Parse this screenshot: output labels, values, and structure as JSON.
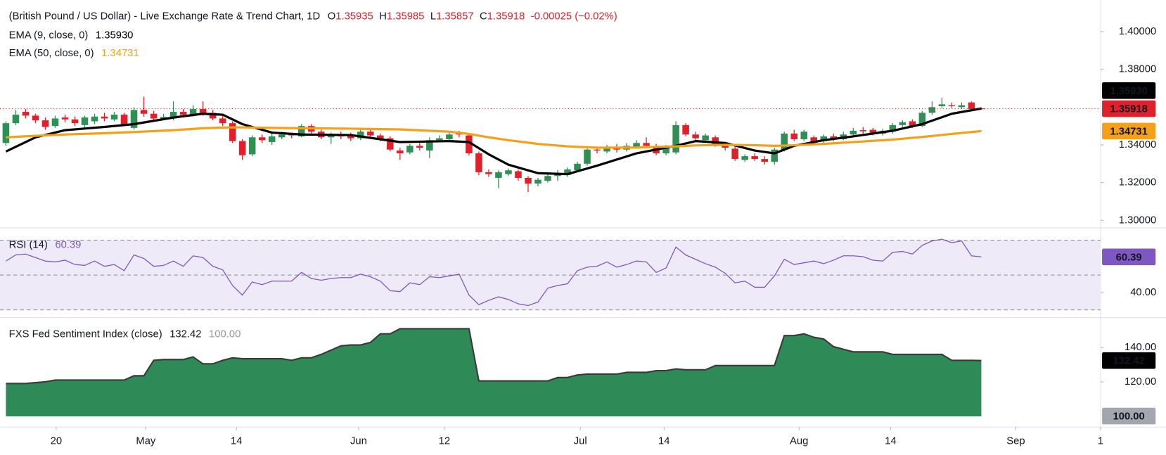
{
  "chart_data": [
    {
      "type": "candlestick",
      "title": "(British Pound / US Dollar) - Live Exchange Rate & Trend Chart, 1D",
      "stats": [
        {
          "key": "O",
          "text": "1.35935"
        },
        {
          "key": "H",
          "text": "1.35985"
        },
        {
          "key": "L",
          "text": "1.35857"
        },
        {
          "key": "C",
          "text": "1.35918"
        }
      ],
      "change": "-0.00025 (−0.02%)",
      "up_color": "#2f8f55",
      "down_color": "#e0202b",
      "open": [
        1.341,
        1.3515,
        1.3575,
        1.3555,
        1.353,
        1.35,
        1.3545,
        1.3535,
        1.3505,
        1.3525,
        1.355,
        1.3535,
        1.356,
        1.349,
        1.3585,
        1.3565,
        1.354,
        1.354,
        1.3575,
        1.356,
        1.359,
        1.357,
        1.354,
        1.3515,
        1.342,
        1.335,
        1.344,
        1.3415,
        1.344,
        1.3455,
        1.3445,
        1.35,
        1.347,
        1.344,
        1.345,
        1.345,
        1.3435,
        1.347,
        1.345,
        1.3435,
        1.337,
        1.336,
        1.3395,
        1.337,
        1.3425,
        1.343,
        1.346,
        1.345,
        1.3355,
        1.3255,
        1.3225,
        1.3245,
        1.326,
        1.3225,
        1.3195,
        1.321,
        1.3235,
        1.324,
        1.3265,
        1.33,
        1.3375,
        1.3365,
        1.339,
        1.3375,
        1.339,
        1.341,
        1.3395,
        1.3355,
        1.336,
        1.3505,
        1.3455,
        1.3425,
        1.344,
        1.34,
        1.338,
        1.332,
        1.334,
        1.3325,
        1.331,
        1.3375,
        1.346,
        1.343,
        1.344,
        1.342,
        1.3445,
        1.343,
        1.3455,
        1.3478,
        1.348,
        1.346,
        1.347,
        1.3505,
        1.3525,
        1.35,
        1.357,
        1.3605,
        1.361,
        1.36,
        1.3625,
        1.35935
      ],
      "high": [
        1.3525,
        1.3585,
        1.359,
        1.3565,
        1.3545,
        1.3555,
        1.356,
        1.355,
        1.3555,
        1.3565,
        1.357,
        1.3575,
        1.357,
        1.36,
        1.3655,
        1.358,
        1.3565,
        1.363,
        1.359,
        1.361,
        1.363,
        1.3585,
        1.3555,
        1.3525,
        1.343,
        1.345,
        1.3455,
        1.346,
        1.347,
        1.3465,
        1.351,
        1.351,
        1.348,
        1.3465,
        1.347,
        1.3465,
        1.3485,
        1.348,
        1.346,
        1.3445,
        1.3385,
        1.3405,
        1.341,
        1.344,
        1.345,
        1.347,
        1.3475,
        1.346,
        1.3365,
        1.327,
        1.3265,
        1.3275,
        1.327,
        1.3235,
        1.3225,
        1.3245,
        1.3265,
        1.328,
        1.331,
        1.3385,
        1.339,
        1.34,
        1.3405,
        1.341,
        1.3425,
        1.344,
        1.3405,
        1.34,
        1.3525,
        1.3515,
        1.347,
        1.346,
        1.345,
        1.341,
        1.339,
        1.335,
        1.3355,
        1.334,
        1.3385,
        1.347,
        1.348,
        1.348,
        1.345,
        1.3455,
        1.346,
        1.347,
        1.349,
        1.3495,
        1.349,
        1.3485,
        1.3515,
        1.353,
        1.3535,
        1.358,
        1.363,
        1.365,
        1.3625,
        1.3625,
        1.363,
        1.35985
      ],
      "low": [
        1.3395,
        1.3505,
        1.354,
        1.3515,
        1.348,
        1.349,
        1.352,
        1.35,
        1.349,
        1.351,
        1.3525,
        1.3525,
        1.35,
        1.348,
        1.355,
        1.3525,
        1.353,
        1.353,
        1.3545,
        1.355,
        1.3555,
        1.353,
        1.35,
        1.341,
        1.332,
        1.334,
        1.341,
        1.34,
        1.343,
        1.3435,
        1.344,
        1.346,
        1.343,
        1.3405,
        1.343,
        1.342,
        1.3425,
        1.344,
        1.342,
        1.3365,
        1.332,
        1.335,
        1.337,
        1.333,
        1.3415,
        1.342,
        1.344,
        1.3345,
        1.324,
        1.323,
        1.317,
        1.3235,
        1.321,
        1.315,
        1.318,
        1.32,
        1.321,
        1.323,
        1.3255,
        1.329,
        1.3355,
        1.3355,
        1.336,
        1.3365,
        1.338,
        1.3385,
        1.3345,
        1.3345,
        1.335,
        1.3445,
        1.3425,
        1.3415,
        1.339,
        1.337,
        1.3315,
        1.331,
        1.3315,
        1.3295,
        1.3295,
        1.3365,
        1.342,
        1.342,
        1.3405,
        1.341,
        1.342,
        1.3425,
        1.3445,
        1.346,
        1.345,
        1.345,
        1.346,
        1.3495,
        1.349,
        1.3495,
        1.356,
        1.3595,
        1.3595,
        1.359,
        1.358,
        1.35857
      ],
      "close": [
        1.3515,
        1.356,
        1.3555,
        1.353,
        1.3495,
        1.354,
        1.3535,
        1.3515,
        1.3545,
        1.355,
        1.354,
        1.356,
        1.351,
        1.3585,
        1.3565,
        1.354,
        1.3548,
        1.3575,
        1.356,
        1.359,
        1.357,
        1.354,
        1.3515,
        1.342,
        1.3345,
        1.344,
        1.3425,
        1.3445,
        1.3455,
        1.345,
        1.35,
        1.347,
        1.344,
        1.345,
        1.3445,
        1.3435,
        1.347,
        1.345,
        1.343,
        1.3375,
        1.3355,
        1.3395,
        1.3385,
        1.3425,
        1.3435,
        1.3455,
        1.3455,
        1.3355,
        1.3255,
        1.3245,
        1.3255,
        1.3265,
        1.3225,
        1.3195,
        1.3215,
        1.3235,
        1.325,
        1.327,
        1.33,
        1.3375,
        1.337,
        1.339,
        1.3375,
        1.3395,
        1.341,
        1.3395,
        1.3355,
        1.3385,
        1.3505,
        1.3455,
        1.3435,
        1.345,
        1.34,
        1.3385,
        1.3325,
        1.334,
        1.3325,
        1.331,
        1.3375,
        1.346,
        1.343,
        1.347,
        1.3415,
        1.3445,
        1.343,
        1.3455,
        1.3475,
        1.3472,
        1.346,
        1.3475,
        1.3505,
        1.352,
        1.35,
        1.357,
        1.36,
        1.3615,
        1.3605,
        1.361,
        1.359,
        1.35918
      ],
      "overlays": [
        {
          "name": "EMA (9, close, 0)",
          "label": "1.35930",
          "color": "#000000",
          "x": [
            0,
            3,
            6,
            10,
            13,
            17,
            20,
            22,
            24,
            27,
            30,
            35,
            40,
            45,
            47,
            49,
            51,
            54,
            57,
            60,
            64,
            68,
            70,
            73,
            76,
            78,
            80,
            83,
            86,
            90,
            93,
            96,
            99
          ],
          "values": [
            1.3365,
            1.344,
            1.3478,
            1.3495,
            1.351,
            1.3545,
            1.3565,
            1.356,
            1.351,
            1.3465,
            1.3455,
            1.3452,
            1.3415,
            1.342,
            1.3415,
            1.335,
            1.3295,
            1.325,
            1.3245,
            1.329,
            1.3355,
            1.3395,
            1.342,
            1.341,
            1.337,
            1.3355,
            1.3395,
            1.3425,
            1.3445,
            1.3475,
            1.351,
            1.3565,
            1.3593
          ]
        },
        {
          "name": "EMA (50, close, 0)",
          "label": "1.34731",
          "color": "#f5a01a",
          "x": [
            0,
            3,
            6,
            10,
            13,
            17,
            20,
            22,
            24,
            27,
            30,
            35,
            40,
            45,
            47,
            49,
            51,
            54,
            57,
            60,
            64,
            68,
            70,
            73,
            76,
            78,
            80,
            83,
            86,
            90,
            93,
            96,
            99
          ],
          "values": [
            1.344,
            1.3448,
            1.3455,
            1.3462,
            1.3468,
            1.3478,
            1.3488,
            1.3492,
            1.3493,
            1.349,
            1.3488,
            1.3486,
            1.3482,
            1.347,
            1.3458,
            1.344,
            1.3425,
            1.3405,
            1.3392,
            1.3385,
            1.3386,
            1.3392,
            1.3397,
            1.34,
            1.3398,
            1.3395,
            1.3398,
            1.3405,
            1.3415,
            1.3428,
            1.3442,
            1.3458,
            1.34731
          ]
        }
      ],
      "xlim": [
        -0.6,
        111.1
      ],
      "ylim": [
        1.2968,
        1.4168
      ],
      "yticks": [
        {
          "value": 1.3,
          "label": "1.30000"
        },
        {
          "value": 1.32,
          "label": "1.32000"
        },
        {
          "value": 1.34,
          "label": "1.34000"
        },
        {
          "value": 1.38,
          "label": "1.38000"
        },
        {
          "value": 1.4,
          "label": "1.40000"
        }
      ]
    },
    {
      "type": "line",
      "name": "RSI (14)",
      "label": "60.39",
      "color": "#7e57c2",
      "band_color": "#efeaf8",
      "values": [
        58,
        61.5,
        62,
        60,
        58,
        57.5,
        58.5,
        56,
        55.5,
        58,
        55,
        56,
        52.5,
        61.5,
        59.5,
        55,
        55.5,
        58,
        55,
        61,
        60,
        55,
        53,
        44,
        38.5,
        46,
        44.5,
        46.5,
        46.5,
        46.5,
        51.5,
        48,
        47,
        48,
        48.5,
        48.5,
        50.5,
        49,
        46.5,
        41,
        40.5,
        45.5,
        44.5,
        49,
        48.5,
        49.5,
        50.5,
        38.5,
        33,
        35.5,
        37.5,
        36,
        33.5,
        32.5,
        34.5,
        42.5,
        44,
        45,
        52.5,
        54.5,
        55,
        57.5,
        54.5,
        56,
        58,
        57.5,
        51.5,
        54,
        66,
        61.5,
        59,
        56.5,
        54.5,
        51,
        45.5,
        46.5,
        43,
        43,
        49.5,
        59,
        56,
        57,
        58,
        56.5,
        58.5,
        61,
        61,
        60.5,
        58.5,
        58,
        63,
        63.5,
        62,
        67,
        69.5,
        70.5,
        68.5,
        69.5,
        61,
        60.39
      ],
      "bands": [
        30,
        50,
        70
      ],
      "xlim": [
        -0.6,
        111.1
      ],
      "ylim": [
        26,
        77
      ],
      "yticks": [
        {
          "value": 40,
          "label": "40.00"
        }
      ]
    },
    {
      "type": "area",
      "name": "FXS Fed Sentiment Index (close)",
      "label": "132.42",
      "color": "#2e8b57",
      "line_color": "#3a3a3a",
      "baseline": 100,
      "baseline_label": "100.00",
      "values": [
        119,
        119,
        119,
        119.5,
        120,
        121,
        121,
        121,
        121,
        121,
        121,
        121,
        121,
        123.5,
        123.5,
        132.5,
        133,
        133,
        133,
        134.5,
        130.5,
        130.5,
        132.5,
        134,
        133.5,
        133.5,
        133.5,
        133.5,
        133.5,
        132.5,
        134,
        134,
        136,
        138.5,
        141,
        141.5,
        141.5,
        143,
        148,
        148,
        151,
        151,
        151,
        151,
        151,
        151,
        151,
        151,
        120.5,
        120.5,
        120.5,
        120.5,
        120.5,
        120.5,
        120.5,
        120.5,
        122.5,
        122.5,
        124,
        124.5,
        124.5,
        124.5,
        124.5,
        125.5,
        125.5,
        125.5,
        126.5,
        126.5,
        127.5,
        127,
        127,
        127,
        129.5,
        129.5,
        129.5,
        129.5,
        129.5,
        129.5,
        129.5,
        147,
        147,
        148,
        146,
        145,
        140.5,
        139,
        137.5,
        137.5,
        137.5,
        137.5,
        136,
        136,
        136,
        136,
        136,
        136,
        132.5,
        132.5,
        132.5,
        132.42
      ],
      "xlim": [
        -0.6,
        111.1
      ],
      "ylim": [
        94,
        157
      ],
      "yticks": [
        {
          "value": 120,
          "label": "120.00"
        },
        {
          "value": 140,
          "label": "140.00"
        }
      ],
      "xticks": [
        {
          "value": 5.1,
          "label": "20"
        },
        {
          "value": 14.2,
          "label": "May"
        },
        {
          "value": 23.4,
          "label": "14"
        },
        {
          "value": 35.8,
          "label": "Jun"
        },
        {
          "value": 44.5,
          "label": "12"
        },
        {
          "value": 58.3,
          "label": "Jul"
        },
        {
          "value": 66.8,
          "label": "14"
        },
        {
          "value": 80.5,
          "label": "Aug"
        },
        {
          "value": 89.8,
          "label": "14"
        },
        {
          "value": 102.5,
          "label": "Sep"
        },
        {
          "value": 111.1,
          "label": "1"
        }
      ]
    }
  ]
}
